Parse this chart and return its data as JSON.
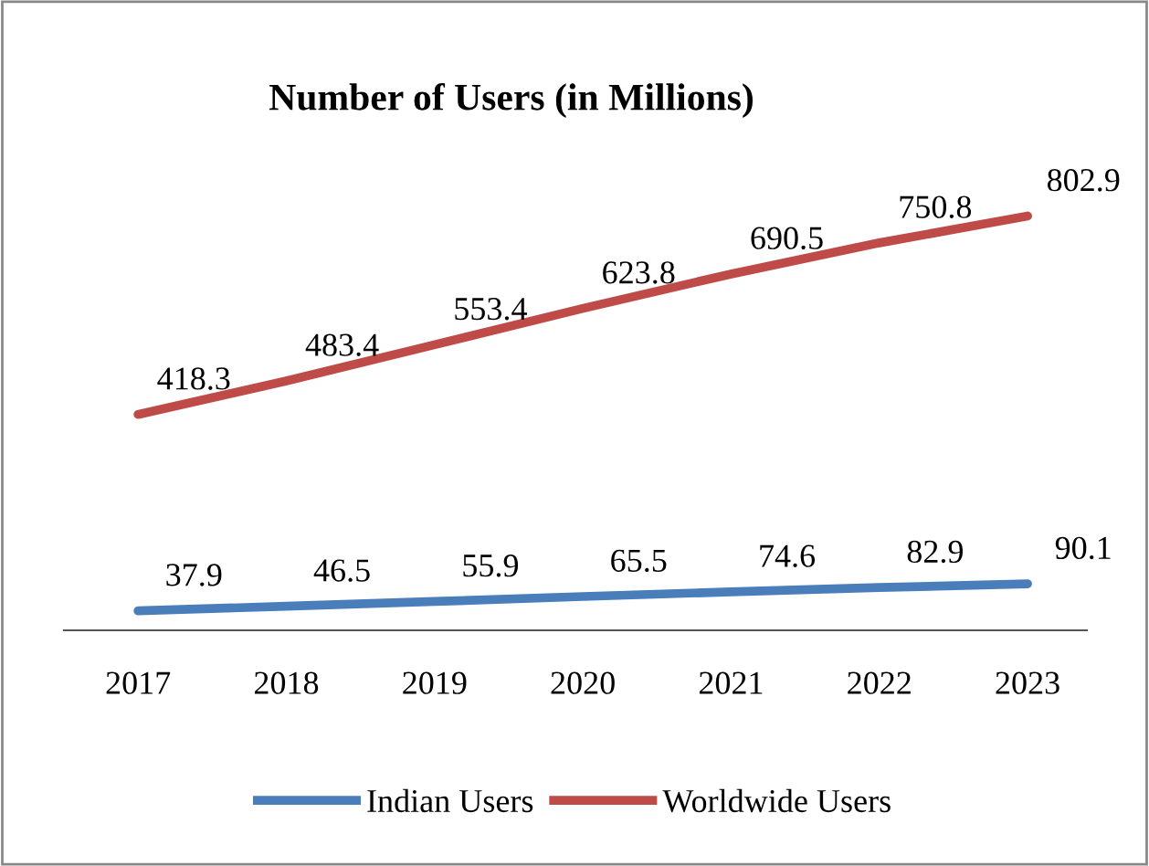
{
  "chart_data": {
    "type": "line",
    "title": "Number of Users (in Millions)",
    "categories": [
      "2017",
      "2018",
      "2019",
      "2020",
      "2021",
      "2022",
      "2023"
    ],
    "series": [
      {
        "name": "Indian Users",
        "color": "#4a7ebb",
        "values": [
          37.9,
          46.5,
          55.9,
          65.5,
          74.6,
          82.9,
          90.1
        ]
      },
      {
        "name": "Worldwide Users",
        "color": "#be4b48",
        "values": [
          418.3,
          483.4,
          553.4,
          623.8,
          690.5,
          750.8,
          802.9
        ]
      }
    ],
    "tick_labels": "x",
    "data_labels": true,
    "legend": "bottom",
    "grid": false,
    "marker": "none",
    "line_style": "solid"
  }
}
